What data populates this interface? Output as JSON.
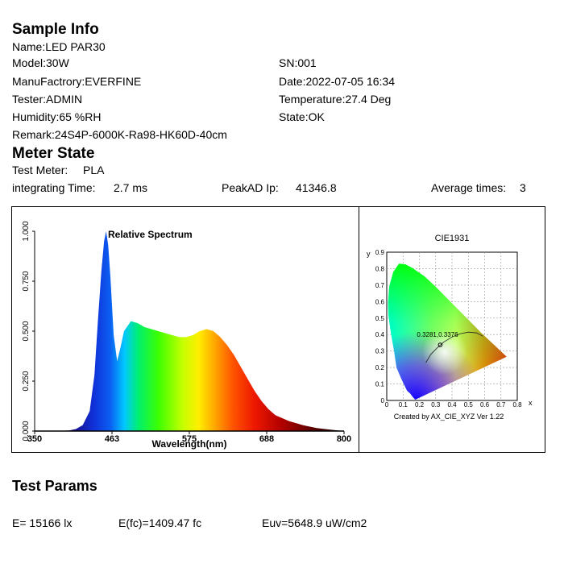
{
  "sample_info": {
    "title": "Sample Info",
    "name": "Name:LED PAR30",
    "model": "Model:30W",
    "sn": "SN:001",
    "manufactory": "ManuFactrory:EVERFINE",
    "date": "Date:2022-07-05 16:34",
    "tester": "Tester:ADMIN",
    "temperature": "Temperature:27.4 Deg",
    "humidity": "Humidity:65 %RH",
    "state": "State:OK",
    "remark": "Remark:24S4P-6000K-Ra98-HK60D-40cm"
  },
  "meter_state": {
    "title": "Meter State",
    "test_meter_label": "Test Meter:",
    "test_meter_value": "PLA",
    "integrating_label": "integrating Time:",
    "integrating_value": "2.7 ms",
    "peak_label": "PeakAD Ip:",
    "peak_value": "41346.8",
    "avg_label": "Average times:",
    "avg_value": "3"
  },
  "chart_data": [
    {
      "type": "area",
      "title": "Relative Spectrum",
      "xlabel": "Wavelength(nm)",
      "ylabel": "",
      "xlim": [
        350,
        800
      ],
      "ylim": [
        0,
        1
      ],
      "x_ticks": [
        "350",
        "463",
        "575",
        "688",
        "800"
      ],
      "y_ticks": [
        "0.000",
        "0.250",
        "0.500",
        "0.750",
        "1.000"
      ],
      "x": [
        350,
        380,
        400,
        410,
        420,
        430,
        437,
        442,
        447,
        451,
        454,
        457,
        460,
        465,
        470,
        475,
        480,
        490,
        500,
        510,
        520,
        530,
        540,
        560,
        570,
        580,
        590,
        600,
        610,
        620,
        630,
        640,
        650,
        660,
        670,
        680,
        690,
        700,
        720,
        740,
        760,
        780,
        800
      ],
      "y": [
        0.0,
        0.0,
        0.003,
        0.01,
        0.03,
        0.1,
        0.28,
        0.55,
        0.8,
        0.95,
        1.0,
        0.93,
        0.78,
        0.48,
        0.35,
        0.42,
        0.5,
        0.55,
        0.54,
        0.52,
        0.51,
        0.5,
        0.49,
        0.47,
        0.47,
        0.48,
        0.5,
        0.51,
        0.5,
        0.47,
        0.43,
        0.38,
        0.32,
        0.26,
        0.2,
        0.15,
        0.11,
        0.08,
        0.05,
        0.03,
        0.015,
        0.007,
        0.0
      ]
    },
    {
      "type": "scatter",
      "title": "CIE1931",
      "xlabel": "x",
      "ylabel": "y",
      "xlim": [
        0,
        0.8
      ],
      "ylim": [
        0,
        0.9
      ],
      "x_ticks": [
        "0",
        "0.1",
        "0.2",
        "0.3",
        "0.4",
        "0.5",
        "0.6",
        "0.7",
        "0.8"
      ],
      "y_ticks": [
        "0",
        "0.1",
        "0.2",
        "0.3",
        "0.4",
        "0.5",
        "0.6",
        "0.7",
        "0.8",
        "0.9"
      ],
      "point": {
        "x": 0.3281,
        "y": 0.3376,
        "label": "0.3281,0.3376"
      },
      "footer": "Created by AX_CIE_XYZ Ver 1.22"
    }
  ],
  "test_params": {
    "title": "Test Params",
    "e": "E=  15166 lx",
    "efc": "E(fc)=1409.47 fc",
    "euv": "Euv=5648.9 uW/cm2"
  }
}
